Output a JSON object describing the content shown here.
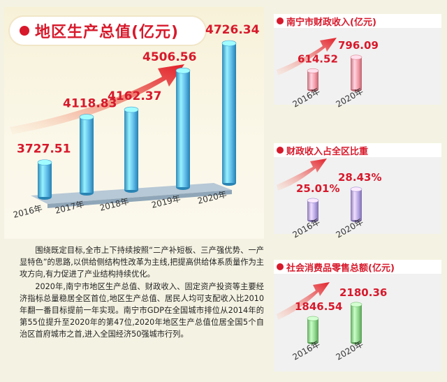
{
  "main_title": "地区生产总值(亿元)",
  "panels": {
    "revenue": {
      "title": "南宁市财政收入(亿元)"
    },
    "share": {
      "title": "财政收入占全区比重"
    },
    "retail": {
      "title": "社会消费品零售总额(亿元)"
    }
  },
  "colors": {
    "accent_red": "#d7192b",
    "gdp_bar": "#5bb6e6",
    "revenue_bar": "#f29aa6",
    "share_bar": "#b5a4e2",
    "retail_bar": "#8ed58c",
    "base_plate": "#b7c8d6"
  },
  "chart_data": [
    {
      "type": "bar",
      "title": "地区生产总值(亿元)",
      "categories": [
        "2016年",
        "2017年",
        "2018年",
        "2019年",
        "2020年"
      ],
      "values": [
        3727.51,
        4118.83,
        4162.37,
        4506.56,
        4726.34
      ],
      "value_labels": [
        "3727.51",
        "4118.83",
        "4162.37",
        "4506.56",
        "4726.34"
      ]
    },
    {
      "type": "bar",
      "title": "南宁市财政收入(亿元)",
      "categories": [
        "2016年",
        "2020年"
      ],
      "values": [
        614.52,
        796.09
      ],
      "value_labels": [
        "614.52",
        "796.09"
      ]
    },
    {
      "type": "bar",
      "title": "财政收入占全区比重",
      "categories": [
        "2016年",
        "2020年"
      ],
      "values": [
        25.01,
        28.43
      ],
      "value_labels": [
        "25.01%",
        "28.43%"
      ]
    },
    {
      "type": "bar",
      "title": "社会消费品零售总额(亿元)",
      "categories": [
        "2016年",
        "2020年"
      ],
      "values": [
        1846.54,
        2180.36
      ],
      "value_labels": [
        "1846.54",
        "2180.36"
      ]
    }
  ],
  "paragraphs": [
    "围绕既定目标,全市上下持续按照“二产补短板、三产强优势、一产显特色”的思路,以供给侧结构性改革为主线,把提高供给体系质量作为主攻方向,有力促进了产业结构持续优化。",
    "2020年,南宁市地区生产总值、财政收入、固定资产投资等主要经济指标总量稳居全区首位,地区生产总值、居民人均可支配收入比2010年翻一番目标提前一年实现。南宁市GDP在全国城市排位从2014年的第55位提升至2020年的第47位,2020年地区生产总值位居全国5个自治区首府城市之首,进入全国经济50强城市行列。"
  ]
}
